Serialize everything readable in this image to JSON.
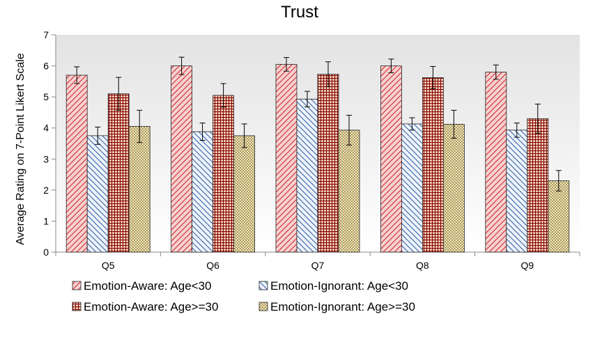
{
  "chart_data": {
    "type": "bar",
    "title": "Trust",
    "ylabel": "Average Rating on 7-Point Likert Scale",
    "xlabel": "",
    "categories": [
      "Q5",
      "Q6",
      "Q7",
      "Q8",
      "Q9"
    ],
    "ylim": [
      0,
      7
    ],
    "yticks": [
      0,
      1,
      2,
      3,
      4,
      5,
      6,
      7
    ],
    "grid": false,
    "legend_position": "bottom",
    "series": [
      {
        "name": "Emotion-Aware: Age<30",
        "values": [
          5.7,
          6.0,
          6.05,
          6.0,
          5.8
        ],
        "error": [
          0.27,
          0.28,
          0.22,
          0.22,
          0.23
        ],
        "fill": "#f6d1d1",
        "stroke": "#cc2222",
        "pattern": "diagonal-up"
      },
      {
        "name": "Emotion-Ignorant: Age<30",
        "values": [
          3.75,
          3.88,
          4.93,
          4.13,
          3.93
        ],
        "error": [
          0.28,
          0.28,
          0.25,
          0.2,
          0.23
        ],
        "fill": "#eef3fb",
        "stroke": "#2c5aa0",
        "pattern": "diagonal-down"
      },
      {
        "name": "Emotion-Aware: Age>=30",
        "values": [
          5.1,
          5.05,
          5.73,
          5.62,
          4.3
        ],
        "error": [
          0.53,
          0.38,
          0.4,
          0.36,
          0.47
        ],
        "fill": "#f3c7b2",
        "stroke": "#7a0000",
        "pattern": "grid"
      },
      {
        "name": "Emotion-Ignorant: Age>=30",
        "values": [
          4.05,
          3.75,
          3.93,
          4.12,
          2.3
        ],
        "error": [
          0.52,
          0.38,
          0.48,
          0.45,
          0.33
        ],
        "fill": "#f3e6b9",
        "stroke": "#6b5b1e",
        "pattern": "checker"
      }
    ],
    "plot_background": [
      "#e3e3e3",
      "#ffffff"
    ]
  }
}
